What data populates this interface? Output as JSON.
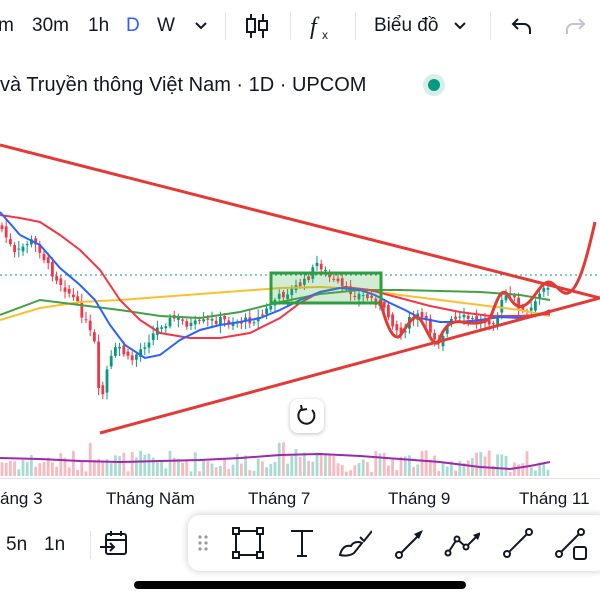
{
  "toolbar": {
    "intervals": [
      "m",
      "30m",
      "1h",
      "D",
      "W"
    ],
    "active_interval": "D",
    "chart_type_label": "Biểu đồ",
    "icons": [
      "chevron-down-icon",
      "candlestick-icon",
      "indicators-fx-icon",
      "chevron-down-icon",
      "undo-icon",
      "redo-icon"
    ]
  },
  "title": {
    "text": "và Truyền thông Việt Nam · 1D · UPCOM",
    "status_color": "#089981"
  },
  "chart": {
    "x_labels": [
      "áng 3",
      "Tháng Năm",
      "Tháng 7",
      "Tháng 9",
      "Tháng 11"
    ],
    "colors": {
      "up": "#089981",
      "down": "#f23645",
      "trendline": "#e53935",
      "ma_red": "#f23645",
      "ma_blue": "#2962ff",
      "ma_green": "#43a047",
      "ma_yellow": "#fbc02d",
      "volume_ma": "#9c27b0",
      "box": "#2e9e3f"
    }
  },
  "bottom": {
    "intervals": [
      "5n",
      "1n"
    ],
    "icons": [
      "calendar-goto-icon",
      "drag-handle-icon",
      "rectangle-tool-icon",
      "text-tool-icon",
      "brush-tool-icon",
      "arrow-tool-icon",
      "path-tool-icon",
      "trend-line-tool-icon",
      "more-line-tool-icon"
    ]
  },
  "reset_icon": "reset-rotate-icon"
}
